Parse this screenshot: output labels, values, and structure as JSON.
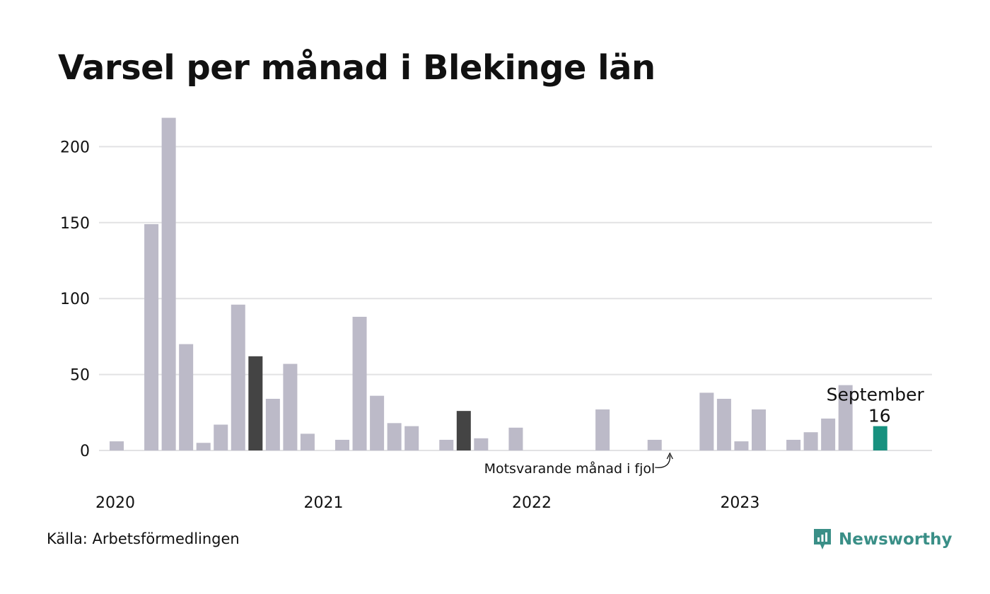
{
  "title": "Varsel per månad i Blekinge län",
  "source": "Källa: Arbetsförmedlingen",
  "brand": "Newsworthy",
  "colors": {
    "bar": "#bcbac8",
    "previous_year": "#444444",
    "current": "#17917f",
    "grid": "#e2e2e4",
    "text": "#111111",
    "brand": "#3a8f87"
  },
  "chart_data": {
    "type": "bar",
    "title": "Varsel per månad i Blekinge län",
    "xlabel": "",
    "ylabel": "",
    "ylim": [
      0,
      220
    ],
    "yticks": [
      0,
      50,
      100,
      150,
      200
    ],
    "year_labels": [
      "2020",
      "2021",
      "2022",
      "2023"
    ],
    "grid": true,
    "categories": [
      "2020-01",
      "2020-02",
      "2020-03",
      "2020-04",
      "2020-05",
      "2020-06",
      "2020-07",
      "2020-08",
      "2020-09",
      "2020-10",
      "2020-11",
      "2020-12",
      "2021-01",
      "2021-02",
      "2021-03",
      "2021-04",
      "2021-05",
      "2021-06",
      "2021-07",
      "2021-08",
      "2021-09",
      "2021-10",
      "2021-11",
      "2021-12",
      "2022-01",
      "2022-02",
      "2022-03",
      "2022-04",
      "2022-05",
      "2022-06",
      "2022-07",
      "2022-08",
      "2022-09",
      "2022-10",
      "2022-11",
      "2022-12",
      "2023-01",
      "2023-02",
      "2023-03",
      "2023-04",
      "2023-05",
      "2023-06",
      "2023-07",
      "2023-08",
      "2023-09"
    ],
    "values": [
      6,
      0,
      149,
      219,
      70,
      5,
      17,
      96,
      62,
      34,
      57,
      11,
      0,
      7,
      88,
      36,
      18,
      16,
      0,
      7,
      26,
      8,
      0,
      15,
      0,
      0,
      0,
      0,
      27,
      0,
      0,
      7,
      0,
      0,
      38,
      34,
      6,
      27,
      0,
      7,
      12,
      21,
      43,
      0,
      16
    ],
    "highlight_previous_year": [
      "2020-09",
      "2021-09"
    ],
    "highlight_current": "2023-09",
    "current_label": "September",
    "current_value_label": "16",
    "annotation": "Motsvarande månad i fjol"
  }
}
